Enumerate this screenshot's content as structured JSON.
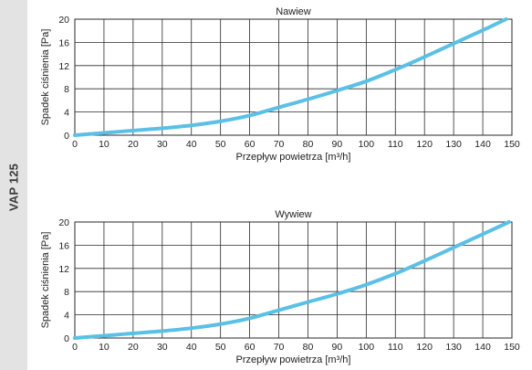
{
  "side_label": "VAP 125",
  "colors": {
    "curve": "#5bc0e6",
    "grid": "#2a2a2a",
    "side_panel": "#e3e3e3"
  },
  "chart_data": [
    {
      "type": "line",
      "title": "Nawiew",
      "xlabel": "Przepływ powietrza [m³/h]",
      "ylabel": "Spadek ciśnienia [Pa]",
      "xlim": [
        0,
        150
      ],
      "ylim": [
        0,
        20
      ],
      "xticks": [
        0,
        10,
        20,
        30,
        40,
        50,
        60,
        70,
        80,
        90,
        100,
        110,
        120,
        130,
        140,
        150
      ],
      "yticks": [
        0,
        4,
        8,
        12,
        16,
        20
      ],
      "grid": true,
      "series": [
        {
          "x": [
            0,
            10,
            20,
            30,
            40,
            50,
            60,
            70,
            80,
            90,
            100,
            110,
            120,
            130,
            140,
            148
          ],
          "y": [
            0,
            0.4,
            0.8,
            1.2,
            1.7,
            2.4,
            3.4,
            4.8,
            6.2,
            7.7,
            9.3,
            11.3,
            13.5,
            15.8,
            18.1,
            20.0
          ]
        }
      ]
    },
    {
      "type": "line",
      "title": "Wywiew",
      "xlabel": "Przepływ powietrza [m³/h]",
      "ylabel": "Spadek ciśnienia [Pa]",
      "xlim": [
        0,
        150
      ],
      "ylim": [
        0,
        20
      ],
      "xticks": [
        0,
        10,
        20,
        30,
        40,
        50,
        60,
        70,
        80,
        90,
        100,
        110,
        120,
        130,
        140,
        150
      ],
      "yticks": [
        0,
        4,
        8,
        12,
        16,
        20
      ],
      "grid": true,
      "series": [
        {
          "x": [
            0,
            10,
            20,
            30,
            40,
            50,
            60,
            70,
            80,
            90,
            100,
            110,
            120,
            130,
            140,
            149
          ],
          "y": [
            0,
            0.4,
            0.8,
            1.2,
            1.7,
            2.4,
            3.4,
            4.8,
            6.2,
            7.6,
            9.2,
            11.1,
            13.3,
            15.6,
            17.9,
            20.0
          ]
        }
      ]
    }
  ]
}
